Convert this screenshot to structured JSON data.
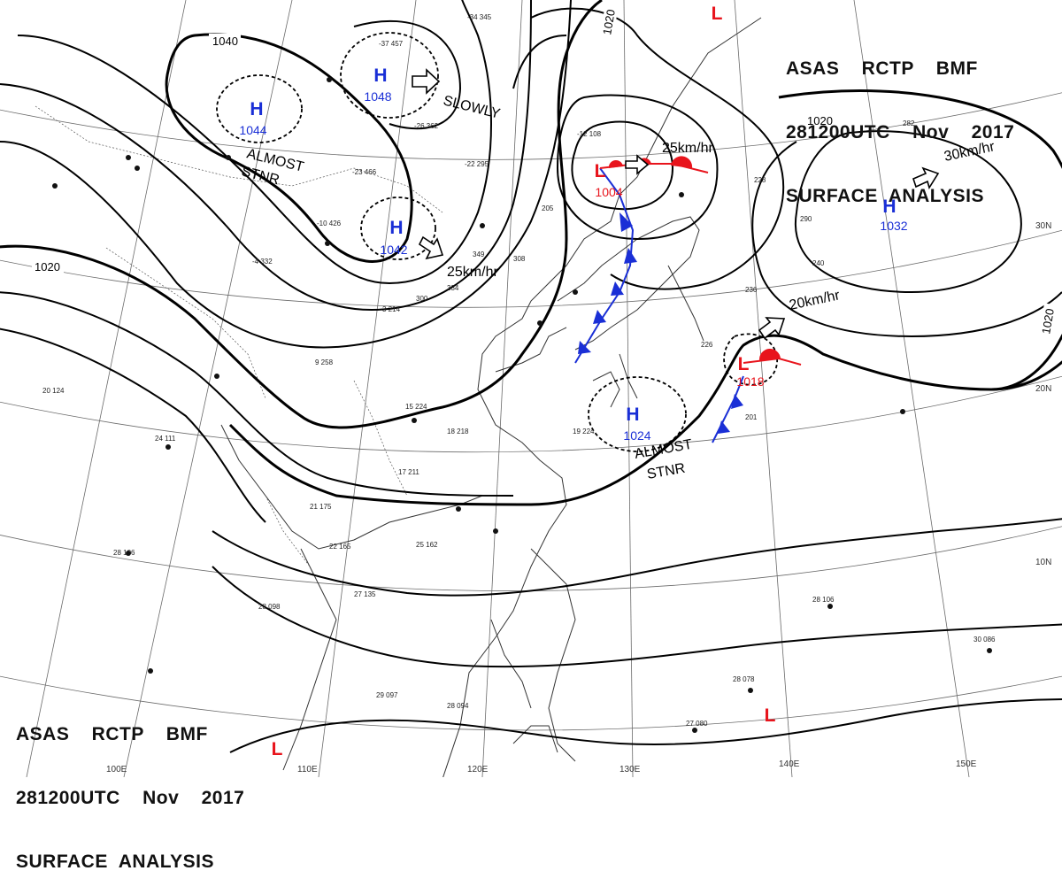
{
  "header": {
    "line1": "ASAS    RCTP    BMF",
    "line2": "281200UTC    Nov    2017",
    "line3": "SURFACE  ANALYSIS"
  },
  "latitude_labels": [
    "30N",
    "20N",
    "10N"
  ],
  "longitude_labels": [
    "110E",
    "120E",
    "130E",
    "140E",
    "150E",
    "100E"
  ],
  "isobar_labels": [
    "1040",
    "1020",
    "1020",
    "1020",
    "1020"
  ],
  "highs": [
    {
      "symbol": "H",
      "pressure": "1048"
    },
    {
      "symbol": "H",
      "pressure": "1044"
    },
    {
      "symbol": "H",
      "pressure": "1042"
    },
    {
      "symbol": "H",
      "pressure": "1032"
    },
    {
      "symbol": "H",
      "pressure": "1024"
    }
  ],
  "lows": [
    {
      "symbol": "L",
      "pressure": "1004"
    },
    {
      "symbol": "L",
      "pressure": "1018"
    },
    {
      "symbol": "L",
      "pressure": ""
    },
    {
      "symbol": "L",
      "pressure": ""
    },
    {
      "symbol": "L",
      "pressure": ""
    }
  ],
  "motion_labels": {
    "slowly": "SLOWLY",
    "m1": "25km/hr",
    "m2": "25km/hr",
    "m3": "30km/hr",
    "m4": "20km/hr",
    "stnr1a": "ALMOST",
    "stnr1b": "STNR",
    "stnr2a": "ALMOST",
    "stnr2b": "STNR"
  },
  "station_reports": [
    "-37 457",
    "-34 345",
    "-26 362",
    "-23 466",
    "-22 295",
    "-12 108",
    "-10 426",
    "-4 332",
    "3 214",
    "9 258",
    "15 224",
    "17 211",
    "18 218",
    "19 224",
    "21 175",
    "22 165",
    "25 162",
    "27 135",
    "28 098",
    "29 097",
    "28 094",
    "27 080",
    "28 078",
    "28 106",
    "30 086",
    "20 124",
    "24 111",
    "28 106",
    "226",
    "236",
    "228",
    "290",
    "240",
    "201",
    "205",
    "349",
    "308",
    "334",
    "300",
    "282"
  ],
  "colors": {
    "isobar": "#000000",
    "high": "#1a2fd6",
    "low": "#e8141c",
    "cold_front": "#1a2fd6",
    "warm_front": "#e8141c",
    "grid": "#555555",
    "coast": "#333333"
  },
  "icons": [
    "high-pressure-icon",
    "low-pressure-icon",
    "motion-arrow-icon",
    "cold-front-icon",
    "warm-front-icon",
    "station-icon"
  ]
}
